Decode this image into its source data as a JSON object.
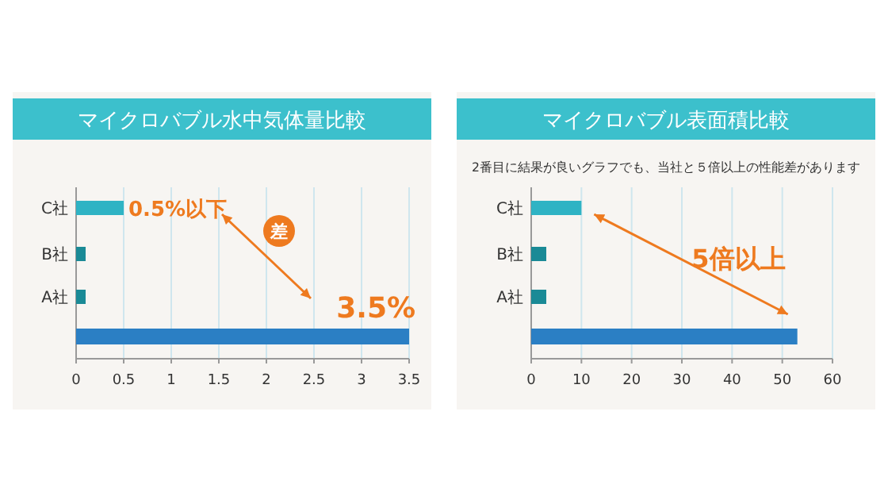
{
  "chart_data": [
    {
      "type": "bar",
      "orientation": "horizontal",
      "title": "マイクロバブル水中気体量比較",
      "categories": [
        "C社",
        "B社",
        "A社",
        null
      ],
      "values": [
        0.5,
        0.1,
        0.1,
        3.5
      ],
      "colors": [
        "#2fb3c4",
        "#1a8a96",
        "#1a8a96",
        "#2b7fc4"
      ],
      "value_labels": [
        "0.5%以下",
        null,
        null,
        "3.5%"
      ],
      "xlim": [
        0,
        3.5
      ],
      "xticks": [
        0,
        0.5,
        1,
        1.5,
        2,
        2.5,
        3,
        3.5
      ],
      "grid": "x",
      "annotations": [
        "差"
      ]
    },
    {
      "type": "bar",
      "orientation": "horizontal",
      "title": "マイクロバブル表面積比較",
      "subtitle": "2番目に結果が良いグラフでも、当社と５倍以上の性能差があります",
      "categories": [
        "C社",
        "B社",
        "A社",
        null
      ],
      "values": [
        10,
        3,
        3,
        53
      ],
      "colors": [
        "#2fb3c4",
        "#1a8a96",
        "#1a8a96",
        "#2b7fc4"
      ],
      "xlim": [
        0,
        60
      ],
      "xticks": [
        0,
        10,
        20,
        30,
        40,
        50,
        60
      ],
      "grid": "x",
      "annotations": [
        "5倍以上"
      ]
    }
  ]
}
